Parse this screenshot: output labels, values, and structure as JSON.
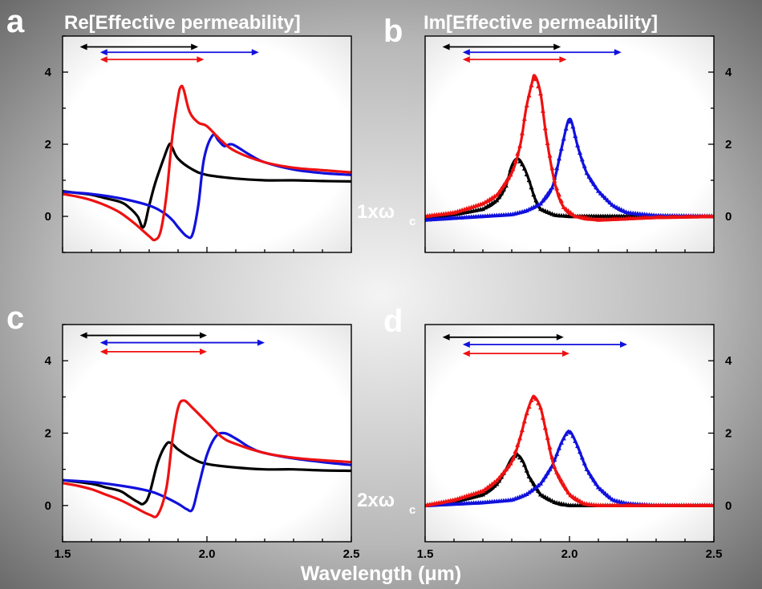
{
  "xlabel": "Wavelength (μm)",
  "row_labels": [
    {
      "main": "1xω",
      "sub": "c"
    },
    {
      "main": "2xω",
      "sub": "c"
    }
  ],
  "colors": {
    "black": "#000000",
    "red": "#ee1111",
    "blue": "#1111dd"
  },
  "chart_data": [
    {
      "letter": "a",
      "title": "Re[Effective permeability]",
      "type": "line",
      "xlim": [
        1.5,
        2.5
      ],
      "ylim": [
        -1,
        5
      ],
      "xticks": [
        1.5,
        2.0,
        2.5
      ],
      "xtick_labels": [],
      "yticks": [
        0,
        2,
        4
      ],
      "ytick_labels": [
        "0",
        "2",
        "4"
      ],
      "yaxis_side": "left",
      "range_arrows": [
        {
          "color": "black",
          "x": [
            1.56,
            1.97
          ],
          "y": 4.7
        },
        {
          "color": "blue",
          "x": [
            1.63,
            2.18
          ],
          "y": 4.55
        },
        {
          "color": "red",
          "x": [
            1.63,
            1.99
          ],
          "y": 4.35
        }
      ],
      "series": [
        {
          "color": "black",
          "markers": false,
          "x": [
            1.5,
            1.55,
            1.6,
            1.65,
            1.7,
            1.73,
            1.76,
            1.78,
            1.8,
            1.82,
            1.85,
            1.87,
            1.88,
            1.9,
            1.95,
            2.0,
            2.1,
            2.2,
            2.3,
            2.4,
            2.5
          ],
          "y": [
            0.7,
            0.65,
            0.6,
            0.5,
            0.4,
            0.25,
            0,
            -0.3,
            0.3,
            0.9,
            1.6,
            2.0,
            1.9,
            1.6,
            1.3,
            1.15,
            1.05,
            1.0,
            1.0,
            0.98,
            0.97
          ]
        },
        {
          "color": "red",
          "markers": false,
          "x": [
            1.5,
            1.55,
            1.6,
            1.65,
            1.7,
            1.75,
            1.8,
            1.82,
            1.84,
            1.86,
            1.88,
            1.9,
            1.91,
            1.92,
            1.94,
            1.97,
            2.0,
            2.05,
            2.1,
            2.2,
            2.3,
            2.4,
            2.5
          ],
          "y": [
            0.62,
            0.55,
            0.45,
            0.3,
            0.1,
            -0.2,
            -0.55,
            -0.65,
            -0.4,
            0.6,
            2.2,
            3.3,
            3.6,
            3.5,
            2.9,
            2.6,
            2.5,
            2.1,
            1.8,
            1.5,
            1.35,
            1.28,
            1.22
          ]
        },
        {
          "color": "blue",
          "markers": false,
          "x": [
            1.5,
            1.6,
            1.7,
            1.8,
            1.85,
            1.88,
            1.9,
            1.93,
            1.95,
            1.97,
            1.99,
            2.02,
            2.04,
            2.06,
            2.08,
            2.1,
            2.15,
            2.2,
            2.3,
            2.4,
            2.5
          ],
          "y": [
            0.68,
            0.62,
            0.5,
            0.3,
            0.1,
            -0.1,
            -0.3,
            -0.55,
            -0.5,
            0.3,
            1.6,
            2.25,
            2.1,
            1.95,
            2.0,
            1.95,
            1.7,
            1.5,
            1.3,
            1.2,
            1.15
          ]
        }
      ]
    },
    {
      "letter": "b",
      "title": "Im[Effective permeability]",
      "type": "line",
      "xlim": [
        1.5,
        2.5
      ],
      "ylim": [
        -1,
        5
      ],
      "xticks": [
        1.5,
        2.0,
        2.5
      ],
      "xtick_labels": [],
      "yticks": [
        0,
        2,
        4
      ],
      "ytick_labels": [
        "0",
        "2",
        "4"
      ],
      "yaxis_side": "right",
      "range_arrows": [
        {
          "color": "black",
          "x": [
            1.56,
            1.97
          ],
          "y": 4.7
        },
        {
          "color": "blue",
          "x": [
            1.63,
            2.18
          ],
          "y": 4.55
        },
        {
          "color": "red",
          "x": [
            1.63,
            1.99
          ],
          "y": 4.35
        }
      ],
      "series": [
        {
          "color": "black",
          "markers": true,
          "x": [
            1.5,
            1.6,
            1.7,
            1.75,
            1.78,
            1.8,
            1.82,
            1.84,
            1.86,
            1.88,
            1.9,
            1.95,
            2.0,
            2.2,
            2.5
          ],
          "y": [
            -0.05,
            0.05,
            0.2,
            0.45,
            0.85,
            1.4,
            1.6,
            1.4,
            1.0,
            0.5,
            0.2,
            0.03,
            0.0,
            0.0,
            0.0
          ]
        },
        {
          "color": "red",
          "markers": true,
          "x": [
            1.5,
            1.6,
            1.7,
            1.75,
            1.8,
            1.83,
            1.85,
            1.87,
            1.88,
            1.9,
            1.92,
            1.95,
            1.98,
            2.02,
            2.1,
            2.3,
            2.5
          ],
          "y": [
            0.0,
            0.1,
            0.35,
            0.6,
            1.2,
            2.0,
            3.0,
            3.7,
            3.9,
            3.4,
            2.2,
            0.9,
            0.25,
            0.0,
            -0.1,
            -0.03,
            0.0
          ]
        },
        {
          "color": "blue",
          "markers": true,
          "x": [
            1.5,
            1.7,
            1.8,
            1.85,
            1.9,
            1.94,
            1.97,
            1.99,
            2.0,
            2.01,
            2.03,
            2.06,
            2.1,
            2.15,
            2.2,
            2.3,
            2.5
          ],
          "y": [
            -0.1,
            0.0,
            0.05,
            0.15,
            0.35,
            0.8,
            1.8,
            2.5,
            2.7,
            2.55,
            1.9,
            1.2,
            0.7,
            0.3,
            0.1,
            0.02,
            0.0
          ]
        }
      ]
    },
    {
      "letter": "c",
      "title": "",
      "type": "line",
      "xlim": [
        1.5,
        2.5
      ],
      "ylim": [
        -1,
        5
      ],
      "xticks": [
        1.5,
        2.0,
        2.5
      ],
      "xtick_labels": [
        "1.5",
        "2.0",
        "2.5"
      ],
      "yticks": [
        0,
        2,
        4
      ],
      "ytick_labels": [
        "0",
        "2",
        "4"
      ],
      "yaxis_side": "left",
      "range_arrows": [
        {
          "color": "black",
          "x": [
            1.56,
            2.0
          ],
          "y": 4.7
        },
        {
          "color": "blue",
          "x": [
            1.63,
            2.2
          ],
          "y": 4.5
        },
        {
          "color": "red",
          "x": [
            1.63,
            2.0
          ],
          "y": 4.25
        }
      ],
      "series": [
        {
          "color": "black",
          "markers": false,
          "x": [
            1.5,
            1.6,
            1.65,
            1.7,
            1.73,
            1.76,
            1.78,
            1.8,
            1.83,
            1.86,
            1.88,
            1.9,
            1.95,
            2.0,
            2.1,
            2.2,
            2.3,
            2.4,
            2.5
          ],
          "y": [
            0.7,
            0.6,
            0.5,
            0.4,
            0.25,
            0.1,
            0.05,
            0.3,
            1.2,
            1.7,
            1.7,
            1.55,
            1.3,
            1.15,
            1.05,
            1.0,
            1.0,
            0.97,
            0.96
          ]
        },
        {
          "color": "red",
          "markers": false,
          "x": [
            1.5,
            1.55,
            1.6,
            1.65,
            1.7,
            1.75,
            1.8,
            1.83,
            1.86,
            1.88,
            1.9,
            1.92,
            1.95,
            2.0,
            2.05,
            2.1,
            2.2,
            2.3,
            2.4,
            2.5
          ],
          "y": [
            0.62,
            0.55,
            0.45,
            0.3,
            0.15,
            -0.05,
            -0.25,
            -0.25,
            0.5,
            1.8,
            2.7,
            2.9,
            2.7,
            2.3,
            1.9,
            1.7,
            1.45,
            1.32,
            1.25,
            1.2
          ]
        },
        {
          "color": "blue",
          "markers": false,
          "x": [
            1.5,
            1.6,
            1.7,
            1.8,
            1.85,
            1.9,
            1.93,
            1.95,
            1.97,
            2.0,
            2.03,
            2.06,
            2.1,
            2.15,
            2.2,
            2.3,
            2.4,
            2.5
          ],
          "y": [
            0.7,
            0.65,
            0.55,
            0.4,
            0.25,
            0.05,
            -0.1,
            -0.1,
            0.5,
            1.4,
            1.9,
            2.0,
            1.85,
            1.6,
            1.45,
            1.3,
            1.2,
            1.12
          ]
        }
      ]
    },
    {
      "letter": "d",
      "title": "",
      "type": "line",
      "xlim": [
        1.5,
        2.5
      ],
      "ylim": [
        -1,
        5
      ],
      "xticks": [
        1.5,
        2.0,
        2.5
      ],
      "xtick_labels": [
        "1.5",
        "2.0",
        "2.5"
      ],
      "yticks": [
        0,
        2,
        4
      ],
      "ytick_labels": [
        "0",
        "2",
        "4"
      ],
      "yaxis_side": "right",
      "range_arrows": [
        {
          "color": "black",
          "x": [
            1.56,
            1.98
          ],
          "y": 4.65
        },
        {
          "color": "blue",
          "x": [
            1.63,
            2.2
          ],
          "y": 4.45
        },
        {
          "color": "red",
          "x": [
            1.63,
            2.0
          ],
          "y": 4.2
        }
      ],
      "series": [
        {
          "color": "black",
          "markers": true,
          "x": [
            1.5,
            1.6,
            1.7,
            1.75,
            1.78,
            1.8,
            1.82,
            1.84,
            1.86,
            1.9,
            1.95,
            2.0,
            2.2,
            2.5
          ],
          "y": [
            0.0,
            0.1,
            0.3,
            0.6,
            1.0,
            1.3,
            1.4,
            1.2,
            0.8,
            0.3,
            0.08,
            0.0,
            0.0,
            0.0
          ]
        },
        {
          "color": "red",
          "markers": true,
          "x": [
            1.5,
            1.6,
            1.7,
            1.75,
            1.8,
            1.83,
            1.85,
            1.87,
            1.88,
            1.9,
            1.92,
            1.95,
            2.0,
            2.05,
            2.1,
            2.3,
            2.5
          ],
          "y": [
            0.0,
            0.15,
            0.4,
            0.7,
            1.2,
            1.9,
            2.5,
            2.95,
            3.0,
            2.7,
            2.0,
            1.0,
            0.3,
            0.05,
            0.0,
            0.0,
            0.0
          ]
        },
        {
          "color": "blue",
          "markers": true,
          "x": [
            1.5,
            1.7,
            1.8,
            1.85,
            1.9,
            1.94,
            1.97,
            1.99,
            2.0,
            2.01,
            2.03,
            2.06,
            2.1,
            2.15,
            2.2,
            2.3,
            2.5
          ],
          "y": [
            0.0,
            0.08,
            0.15,
            0.3,
            0.6,
            1.1,
            1.7,
            2.0,
            2.05,
            1.95,
            1.6,
            1.0,
            0.5,
            0.15,
            0.05,
            0.0,
            0.0
          ]
        }
      ]
    }
  ]
}
